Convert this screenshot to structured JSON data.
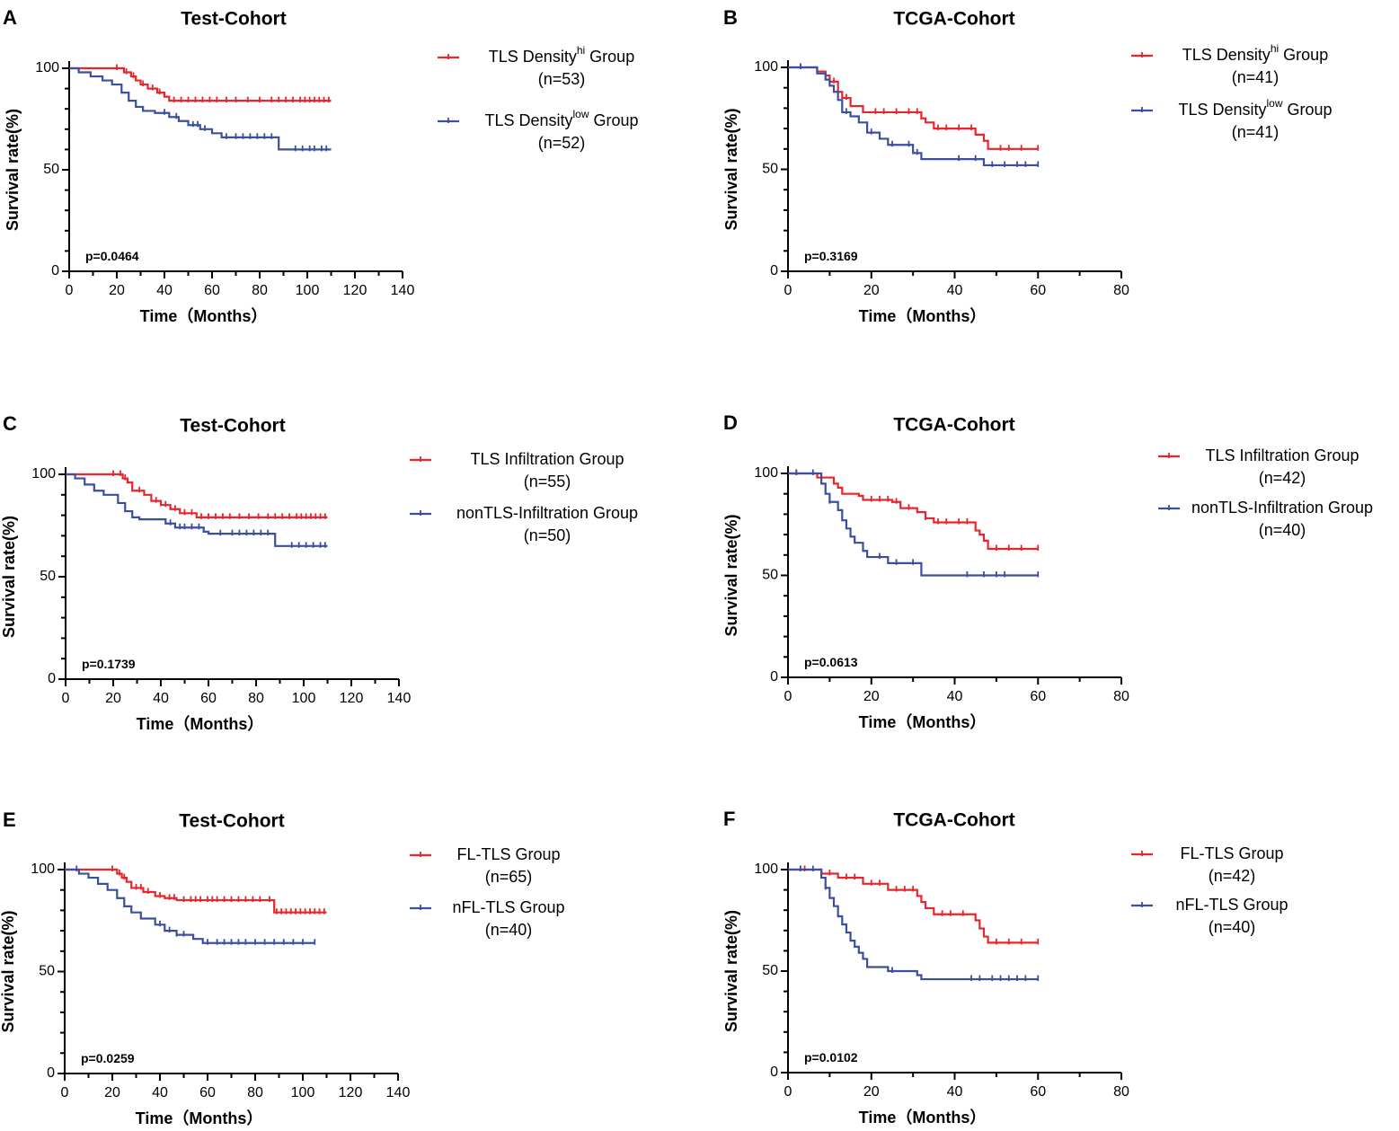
{
  "colors": {
    "hi": "#e8252b",
    "low": "#3b4fa0",
    "axis": "#000000"
  },
  "chart_data": [
    {
      "letter": "A",
      "type": "line",
      "title": "Test-Cohort",
      "xlabel": "Time（Months）",
      "ylabel": "Survival rate(%)",
      "xlim": [
        0,
        140
      ],
      "ylim": [
        0,
        100
      ],
      "xticks": [
        0,
        20,
        40,
        60,
        80,
        100,
        120,
        140
      ],
      "yticks": [
        0,
        50,
        100
      ],
      "pvalue": "p=0.0464",
      "series": [
        {
          "name": "TLS Density",
          "sup": "hi",
          "suffix": " Group",
          "n": "(n=53)",
          "color": "hi",
          "steps": [
            [
              0,
              100
            ],
            [
              23,
              98
            ],
            [
              26,
              96
            ],
            [
              28,
              94
            ],
            [
              30,
              92
            ],
            [
              33,
              90
            ],
            [
              37,
              88
            ],
            [
              40,
              86
            ],
            [
              42,
              84
            ],
            [
              110,
              84
            ]
          ],
          "censors": [
            20,
            24,
            27,
            31,
            35,
            38,
            44,
            47,
            50,
            53,
            56,
            59,
            62,
            66,
            70,
            75,
            80,
            85,
            88,
            91,
            94,
            97,
            99,
            101,
            103,
            105,
            107,
            109
          ]
        },
        {
          "name": "TLS Density",
          "sup": "low",
          "suffix": " Group",
          "n": "(n=52)",
          "color": "low",
          "steps": [
            [
              0,
              100
            ],
            [
              4,
              98
            ],
            [
              9,
              96
            ],
            [
              14,
              94
            ],
            [
              18,
              92
            ],
            [
              22,
              88
            ],
            [
              25,
              84
            ],
            [
              28,
              81
            ],
            [
              31,
              79
            ],
            [
              36,
              78
            ],
            [
              42,
              76
            ],
            [
              46,
              74
            ],
            [
              50,
              72
            ],
            [
              55,
              70
            ],
            [
              60,
              68
            ],
            [
              64,
              66
            ],
            [
              88,
              60
            ],
            [
              110,
              60
            ]
          ],
          "censors": [
            40,
            45,
            52,
            54,
            57,
            66,
            70,
            73,
            76,
            79,
            82,
            85,
            95,
            98,
            101,
            103,
            106,
            108
          ]
        }
      ]
    },
    {
      "letter": "B",
      "type": "line",
      "title": "TCGA-Cohort",
      "xlabel": "Time（Months）",
      "ylabel": "Survival rate(%)",
      "xlim": [
        0,
        80
      ],
      "ylim": [
        0,
        100
      ],
      "xticks": [
        0,
        20,
        40,
        60,
        80
      ],
      "yticks": [
        0,
        50,
        100
      ],
      "pvalue": "p=0.3169",
      "series": [
        {
          "name": "TLS Density",
          "sup": "hi",
          "suffix": " Group",
          "n": "(n=41)",
          "color": "hi",
          "steps": [
            [
              0,
              100
            ],
            [
              7,
              98
            ],
            [
              9,
              96
            ],
            [
              10,
              93
            ],
            [
              12,
              88
            ],
            [
              13,
              85
            ],
            [
              15,
              81
            ],
            [
              18,
              78
            ],
            [
              32,
              75
            ],
            [
              33,
              73
            ],
            [
              35,
              70
            ],
            [
              45,
              67
            ],
            [
              47,
              64
            ],
            [
              48,
              60
            ],
            [
              60,
              60
            ]
          ],
          "censors": [
            3,
            11,
            14,
            21,
            23,
            26,
            29,
            31,
            36,
            38,
            41,
            44,
            51,
            53,
            56,
            60
          ]
        },
        {
          "name": "TLS Density",
          "sup": "low",
          "suffix": " Group",
          "n": "(n=41)",
          "color": "low",
          "steps": [
            [
              0,
              100
            ],
            [
              7,
              97
            ],
            [
              9,
              94
            ],
            [
              10,
              91
            ],
            [
              11,
              88
            ],
            [
              12,
              84
            ],
            [
              13,
              78
            ],
            [
              15,
              76
            ],
            [
              17,
              73
            ],
            [
              19,
              68
            ],
            [
              22,
              65
            ],
            [
              24,
              62
            ],
            [
              30,
              58
            ],
            [
              32,
              55
            ],
            [
              47,
              52
            ],
            [
              60,
              52
            ]
          ],
          "censors": [
            3,
            14,
            20,
            25,
            29,
            31,
            41,
            45,
            49,
            52,
            55,
            57,
            60
          ]
        }
      ]
    },
    {
      "letter": "C",
      "type": "line",
      "title": "Test-Cohort",
      "xlabel": "Time（Months）",
      "ylabel": "Survival rate(%)",
      "xlim": [
        0,
        140
      ],
      "ylim": [
        0,
        100
      ],
      "xticks": [
        0,
        20,
        40,
        60,
        80,
        100,
        120,
        140
      ],
      "yticks": [
        0,
        50,
        100
      ],
      "pvalue": "p=0.1739",
      "series": [
        {
          "name": "TLS Infiltration Group",
          "n": "(n=55)",
          "color": "hi",
          "steps": [
            [
              0,
              100
            ],
            [
              24,
              98
            ],
            [
              26,
              96
            ],
            [
              28,
              92
            ],
            [
              33,
              90
            ],
            [
              36,
              87
            ],
            [
              40,
              85
            ],
            [
              44,
              83
            ],
            [
              48,
              81
            ],
            [
              55,
              79
            ],
            [
              110,
              79
            ]
          ],
          "censors": [
            20,
            23,
            25,
            31,
            38,
            42,
            46,
            50,
            53,
            57,
            60,
            63,
            66,
            69,
            73,
            77,
            81,
            85,
            88,
            91,
            94,
            97,
            99,
            101,
            103,
            105,
            107,
            109
          ]
        },
        {
          "name": "nonTLS-Infiltration Group",
          "n": "(n=50)",
          "color": "low",
          "steps": [
            [
              0,
              100
            ],
            [
              4,
              98
            ],
            [
              8,
              95
            ],
            [
              12,
              92
            ],
            [
              16,
              90
            ],
            [
              22,
              86
            ],
            [
              25,
              82
            ],
            [
              28,
              79
            ],
            [
              31,
              78
            ],
            [
              42,
              76
            ],
            [
              46,
              74
            ],
            [
              58,
              72
            ],
            [
              60,
              71
            ],
            [
              88,
              65
            ],
            [
              110,
              65
            ]
          ],
          "censors": [
            44,
            48,
            50,
            53,
            56,
            65,
            70,
            73,
            76,
            79,
            82,
            85,
            95,
            98,
            101,
            104,
            107,
            109
          ]
        }
      ]
    },
    {
      "letter": "D",
      "type": "line",
      "title": "TCGA-Cohort",
      "xlabel": "Time（Months）",
      "ylabel": "Survival rate(%)",
      "xlim": [
        0,
        80
      ],
      "ylim": [
        0,
        100
      ],
      "xticks": [
        0,
        20,
        40,
        60,
        80
      ],
      "yticks": [
        0,
        50,
        100
      ],
      "pvalue": "p=0.0613",
      "series": [
        {
          "name": "TLS Infiltration Group",
          "n": "(n=42)",
          "color": "hi",
          "steps": [
            [
              0,
              100
            ],
            [
              7,
              98
            ],
            [
              11,
              95
            ],
            [
              12,
              93
            ],
            [
              13,
              90
            ],
            [
              17,
              89
            ],
            [
              18,
              87
            ],
            [
              25,
              86
            ],
            [
              27,
              83
            ],
            [
              31,
              81
            ],
            [
              33,
              78
            ],
            [
              35,
              76
            ],
            [
              45,
              72
            ],
            [
              46,
              70
            ],
            [
              47,
              67
            ],
            [
              48,
              63
            ],
            [
              60,
              63
            ]
          ],
          "censors": [
            2,
            20,
            22,
            24,
            26,
            29,
            33,
            36,
            38,
            41,
            43,
            50,
            53,
            56,
            60
          ]
        },
        {
          "name": "nonTLS-Infiltration Group",
          "n": "(n=40)",
          "color": "low",
          "steps": [
            [
              0,
              100
            ],
            [
              8,
              95
            ],
            [
              9,
              90
            ],
            [
              10,
              86
            ],
            [
              12,
              82
            ],
            [
              13,
              77
            ],
            [
              14,
              73
            ],
            [
              15,
              69
            ],
            [
              16,
              66
            ],
            [
              18,
              62
            ],
            [
              19,
              59
            ],
            [
              24,
              56
            ],
            [
              32,
              50
            ],
            [
              60,
              50
            ]
          ],
          "censors": [
            2,
            6,
            10,
            22,
            26,
            30,
            43,
            47,
            50,
            52,
            60
          ]
        }
      ]
    },
    {
      "letter": "E",
      "type": "line",
      "title": "Test-Cohort",
      "xlabel": "Time（Months）",
      "ylabel": "Survival rate(%)",
      "xlim": [
        0,
        140
      ],
      "ylim": [
        0,
        100
      ],
      "xticks": [
        0,
        20,
        40,
        60,
        80,
        100,
        120,
        140
      ],
      "yticks": [
        0,
        50,
        100
      ],
      "pvalue": "p=0.0259",
      "series": [
        {
          "name": "FL-TLS Group",
          "n": "(n=65)",
          "color": "hi",
          "steps": [
            [
              0,
              100
            ],
            [
              22,
              98
            ],
            [
              24,
              96
            ],
            [
              26,
              94
            ],
            [
              28,
              91
            ],
            [
              33,
              89
            ],
            [
              38,
              87
            ],
            [
              42,
              86
            ],
            [
              47,
              85
            ],
            [
              88,
              79
            ],
            [
              110,
              79
            ]
          ],
          "censors": [
            20,
            23,
            25,
            30,
            32,
            35,
            40,
            44,
            46,
            50,
            53,
            55,
            57,
            60,
            62,
            64,
            67,
            70,
            73,
            76,
            79,
            82,
            86,
            89,
            91,
            93,
            95,
            97,
            99,
            101,
            103,
            105,
            107,
            109
          ]
        },
        {
          "name": "nFL-TLS Group",
          "n": "(n=40)",
          "color": "low",
          "steps": [
            [
              0,
              100
            ],
            [
              6,
              98
            ],
            [
              10,
              96
            ],
            [
              14,
              93
            ],
            [
              18,
              90
            ],
            [
              22,
              86
            ],
            [
              25,
              82
            ],
            [
              28,
              79
            ],
            [
              32,
              76
            ],
            [
              38,
              73
            ],
            [
              42,
              70
            ],
            [
              47,
              68
            ],
            [
              54,
              66
            ],
            [
              58,
              64
            ],
            [
              105,
              64
            ]
          ],
          "censors": [
            5,
            40,
            44,
            47,
            50,
            60,
            64,
            67,
            70,
            73,
            76,
            80,
            84,
            88,
            92,
            96,
            100,
            105
          ]
        }
      ]
    },
    {
      "letter": "F",
      "type": "line",
      "title": "TCGA-Cohort",
      "xlabel": "Time（Months）",
      "ylabel": "Survival rate(%)",
      "xlim": [
        0,
        80
      ],
      "ylim": [
        0,
        100
      ],
      "xticks": [
        0,
        20,
        40,
        60,
        80
      ],
      "yticks": [
        0,
        50,
        100
      ],
      "pvalue": "p=0.0102",
      "series": [
        {
          "name": "FL-TLS Group",
          "n": "(n=42)",
          "color": "hi",
          "steps": [
            [
              0,
              100
            ],
            [
              8,
              98
            ],
            [
              12,
              96
            ],
            [
              18,
              93
            ],
            [
              24,
              90
            ],
            [
              31,
              87
            ],
            [
              32,
              84
            ],
            [
              33,
              81
            ],
            [
              35,
              78
            ],
            [
              45,
              75
            ],
            [
              46,
              71
            ],
            [
              47,
              67
            ],
            [
              48,
              64
            ],
            [
              60,
              64
            ]
          ],
          "censors": [
            4,
            10,
            14,
            16,
            20,
            22,
            26,
            28,
            30,
            37,
            39,
            42,
            50,
            53,
            56,
            60
          ]
        },
        {
          "name": "nFL-TLS Group",
          "n": "(n=40)",
          "color": "low",
          "steps": [
            [
              0,
              100
            ],
            [
              8,
              96
            ],
            [
              9,
              91
            ],
            [
              10,
              86
            ],
            [
              11,
              82
            ],
            [
              12,
              77
            ],
            [
              13,
              73
            ],
            [
              14,
              69
            ],
            [
              15,
              65
            ],
            [
              16,
              62
            ],
            [
              17,
              59
            ],
            [
              18,
              56
            ],
            [
              19,
              52
            ],
            [
              24,
              50
            ],
            [
              31,
              48
            ],
            [
              32,
              46
            ],
            [
              60,
              46
            ]
          ],
          "censors": [
            3,
            6,
            9,
            25,
            44,
            46,
            49,
            51,
            53,
            55,
            57,
            60
          ]
        }
      ]
    }
  ]
}
